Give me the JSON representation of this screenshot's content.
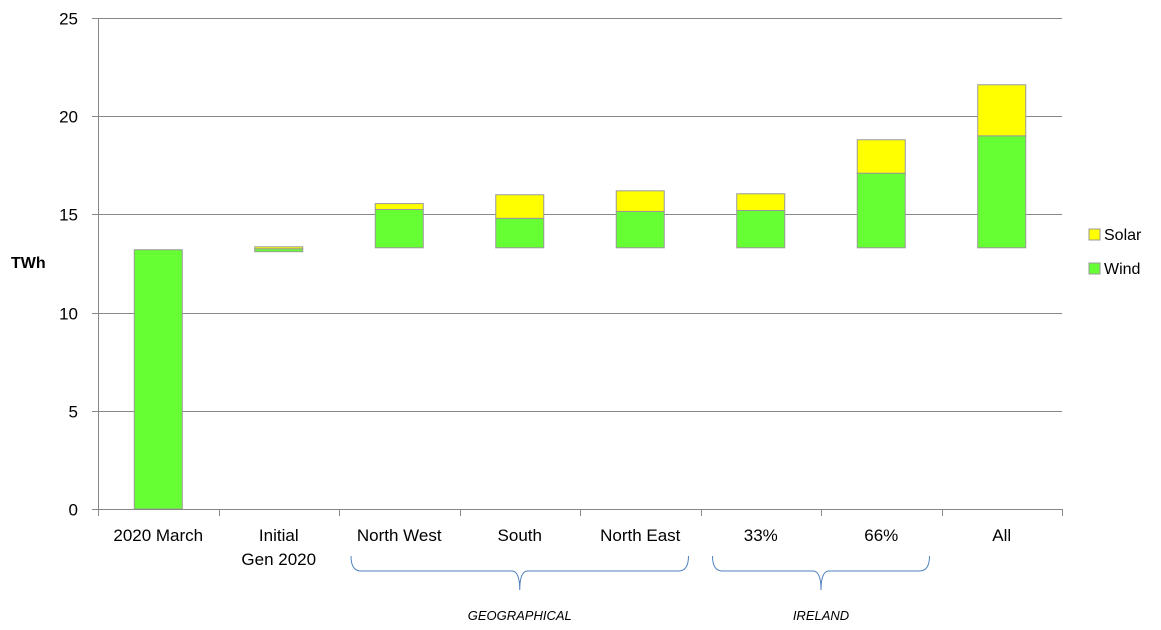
{
  "chart_data": {
    "type": "bar",
    "stacked": true,
    "waterfall": true,
    "title": "",
    "xlabel": "",
    "ylabel": "TWh",
    "ylim": [
      0,
      25
    ],
    "yticks": [
      0,
      5,
      10,
      15,
      20,
      25
    ],
    "grid": true,
    "legend_position": "right",
    "categories": [
      "2020 March",
      "Initial Gen 2020",
      "North West",
      "South",
      "North East",
      "33%",
      "66%",
      "All"
    ],
    "category_lines": [
      [
        "2020 March"
      ],
      [
        "Initial",
        "Gen 2020"
      ],
      [
        "North West"
      ],
      [
        "South"
      ],
      [
        "North East"
      ],
      [
        "33%"
      ],
      [
        "66%"
      ],
      [
        "All"
      ]
    ],
    "base": [
      0,
      13.1,
      13.3,
      13.3,
      13.3,
      13.3,
      13.3,
      13.3
    ],
    "series": [
      {
        "name": "Wind",
        "color": "#66ff33",
        "values": [
          13.2,
          0.15,
          1.95,
          1.5,
          1.85,
          1.9,
          3.8,
          5.7
        ]
      },
      {
        "name": "Solar",
        "color": "#ffff00",
        "values": [
          0,
          0.1,
          0.3,
          1.2,
          1.05,
          0.85,
          1.7,
          2.6
        ]
      }
    ],
    "groups": [
      {
        "label": "GEOGRAPHICAL",
        "categories": [
          "North West",
          "South",
          "North East"
        ]
      },
      {
        "label": "IRELAND",
        "categories": [
          "33%",
          "66%"
        ]
      }
    ],
    "legend": [
      {
        "name": "Solar",
        "color": "#ffff00"
      },
      {
        "name": "Wind",
        "color": "#66ff33"
      }
    ]
  }
}
